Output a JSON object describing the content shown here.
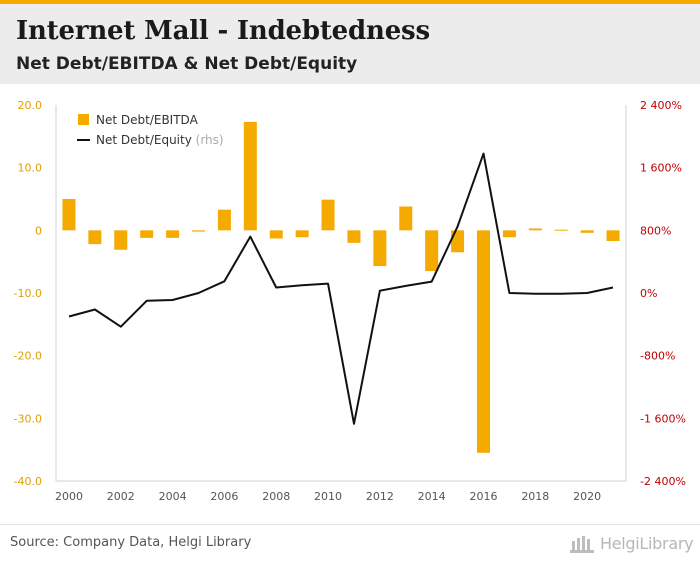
{
  "header": {
    "title": "Internet Mall - Indebtedness",
    "subtitle": "Net Debt/EBITDA & Net Debt/Equity"
  },
  "footer": {
    "source": "Source: Company Data, Helgi Library",
    "logo_text": "HelgiLibrary"
  },
  "colors": {
    "accent": "#f5aa00",
    "line": "#111111",
    "axis_text_left": "#e0a000",
    "axis_text_right": "#c00000"
  },
  "chart_data": {
    "type": "bar+line",
    "categories": [
      2000,
      2001,
      2002,
      2003,
      2004,
      2005,
      2006,
      2007,
      2008,
      2009,
      2010,
      2011,
      2012,
      2013,
      2014,
      2015,
      2016,
      2017,
      2018,
      2019,
      2020,
      2021
    ],
    "x_tick_labels": [
      "2000",
      "2002",
      "2004",
      "2006",
      "2008",
      "2010",
      "2012",
      "2014",
      "2016",
      "2018",
      "2020"
    ],
    "series": [
      {
        "name": "Net Debt/EBITDA",
        "axis": "left",
        "kind": "bar",
        "values": [
          5.0,
          -2.2,
          -3.1,
          -1.2,
          -1.2,
          -0.2,
          3.3,
          17.3,
          -1.3,
          -1.1,
          4.9,
          -2.0,
          -5.7,
          3.8,
          -6.5,
          -3.5,
          -35.5,
          -1.1,
          0.3,
          0.1,
          -0.4,
          -1.7
        ]
      },
      {
        "name": "Net Debt/Equity",
        "axis": "right",
        "kind": "line",
        "values": [
          -300,
          -210,
          -430,
          -100,
          -90,
          0,
          150,
          720,
          70,
          100,
          120,
          -1670,
          30,
          90,
          145,
          850,
          1780,
          0,
          -10,
          -10,
          0,
          70
        ]
      }
    ],
    "legend": [
      {
        "label": "Net Debt/EBITDA",
        "suffix": ""
      },
      {
        "label": "Net Debt/Equity",
        "suffix": "(rhs)"
      }
    ],
    "legend_position": "top-left",
    "y_left": {
      "min": -40,
      "max": 20,
      "ticks": [
        20,
        10,
        0,
        -10,
        -20,
        -30,
        -40
      ],
      "tick_labels": [
        "20.0",
        "10.0",
        "0",
        "-10.0",
        "-20.0",
        "-30.0",
        "-40.0"
      ]
    },
    "y_right": {
      "min": -2400,
      "max": 2400,
      "ticks": [
        2400,
        1600,
        800,
        0,
        -800,
        -1600,
        -2400
      ],
      "tick_labels": [
        "2 400%",
        "1 600%",
        "800%",
        "0%",
        "-800%",
        "-1 600%",
        "-2 400%"
      ]
    },
    "grid": false
  }
}
